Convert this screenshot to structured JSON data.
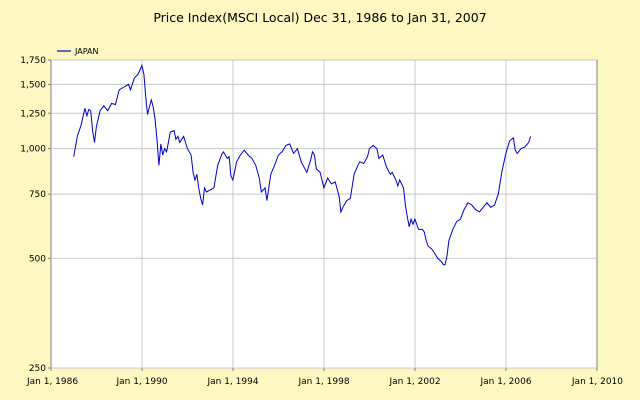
{
  "chart_data": {
    "type": "line",
    "title": "Price Index(MSCI Local) Dec 31, 1986 to Jan 31, 2007",
    "xlabel": "",
    "ylabel": "",
    "y_scale": "log",
    "xlim": [
      "1986-01-01",
      "2010-01-01"
    ],
    "ylim": [
      250,
      1750
    ],
    "grid": true,
    "legend_position": "top-left",
    "x_ticks": [
      "Jan 1, 1986",
      "Jan 1, 1990",
      "Jan 1, 1994",
      "Jan 1, 1998",
      "Jan 1, 2002",
      "Jan 1, 2006",
      "Jan 1, 2010"
    ],
    "y_ticks": [
      "250",
      "500",
      "750",
      "1,000",
      "1,250",
      "1,500",
      "1,750"
    ],
    "series": [
      {
        "name": "JAPAN",
        "color": "#0000cc",
        "points": [
          [
            "1986-12-31",
            950
          ],
          [
            "1987-02-28",
            1080
          ],
          [
            "1987-04-30",
            1160
          ],
          [
            "1987-06-30",
            1290
          ],
          [
            "1987-07-31",
            1230
          ],
          [
            "1987-08-31",
            1280
          ],
          [
            "1987-09-30",
            1270
          ],
          [
            "1987-10-31",
            1120
          ],
          [
            "1987-11-30",
            1040
          ],
          [
            "1987-12-31",
            1150
          ],
          [
            "1988-02-28",
            1270
          ],
          [
            "1988-04-30",
            1310
          ],
          [
            "1988-06-30",
            1270
          ],
          [
            "1988-08-31",
            1330
          ],
          [
            "1988-10-31",
            1320
          ],
          [
            "1988-12-31",
            1450
          ],
          [
            "1989-03-31",
            1480
          ],
          [
            "1989-05-31",
            1500
          ],
          [
            "1989-06-30",
            1450
          ],
          [
            "1989-08-31",
            1560
          ],
          [
            "1989-10-31",
            1600
          ],
          [
            "1989-12-31",
            1690
          ],
          [
            "1990-01-31",
            1600
          ],
          [
            "1990-02-28",
            1400
          ],
          [
            "1990-03-31",
            1240
          ],
          [
            "1990-04-30",
            1300
          ],
          [
            "1990-05-31",
            1360
          ],
          [
            "1990-06-30",
            1300
          ],
          [
            "1990-07-31",
            1200
          ],
          [
            "1990-08-31",
            1050
          ],
          [
            "1990-09-30",
            900
          ],
          [
            "1990-10-31",
            1030
          ],
          [
            "1990-11-30",
            960
          ],
          [
            "1990-12-31",
            1000
          ],
          [
            "1991-01-31",
            980
          ],
          [
            "1991-03-31",
            1110
          ],
          [
            "1991-05-31",
            1120
          ],
          [
            "1991-06-30",
            1060
          ],
          [
            "1991-07-31",
            1080
          ],
          [
            "1991-08-31",
            1040
          ],
          [
            "1991-10-31",
            1080
          ],
          [
            "1991-12-31",
            1000
          ],
          [
            "1992-02-28",
            960
          ],
          [
            "1992-03-31",
            860
          ],
          [
            "1992-04-30",
            820
          ],
          [
            "1992-05-31",
            850
          ],
          [
            "1992-06-30",
            780
          ],
          [
            "1992-07-31",
            730
          ],
          [
            "1992-08-31",
            700
          ],
          [
            "1992-09-30",
            780
          ],
          [
            "1992-10-31",
            760
          ],
          [
            "1992-12-31",
            770
          ],
          [
            "1993-02-28",
            780
          ],
          [
            "1993-04-30",
            900
          ],
          [
            "1993-06-30",
            960
          ],
          [
            "1993-07-31",
            980
          ],
          [
            "1993-08-31",
            960
          ],
          [
            "1993-09-30",
            940
          ],
          [
            "1993-10-31",
            950
          ],
          [
            "1993-11-30",
            840
          ],
          [
            "1993-12-31",
            820
          ],
          [
            "1994-02-28",
            920
          ],
          [
            "1994-04-30",
            960
          ],
          [
            "1994-06-30",
            990
          ],
          [
            "1994-08-31",
            960
          ],
          [
            "1994-10-31",
            940
          ],
          [
            "1994-12-31",
            900
          ],
          [
            "1995-02-28",
            830
          ],
          [
            "1995-03-31",
            760
          ],
          [
            "1995-05-31",
            780
          ],
          [
            "1995-06-30",
            720
          ],
          [
            "1995-08-31",
            850
          ],
          [
            "1995-10-31",
            900
          ],
          [
            "1995-12-31",
            960
          ],
          [
            "1996-02-28",
            980
          ],
          [
            "1996-04-30",
            1020
          ],
          [
            "1996-06-30",
            1030
          ],
          [
            "1996-08-31",
            970
          ],
          [
            "1996-10-31",
            1000
          ],
          [
            "1996-12-31",
            920
          ],
          [
            "1997-02-28",
            880
          ],
          [
            "1997-03-31",
            860
          ],
          [
            "1997-05-31",
            930
          ],
          [
            "1997-06-30",
            980
          ],
          [
            "1997-07-31",
            960
          ],
          [
            "1997-08-31",
            880
          ],
          [
            "1997-10-31",
            860
          ],
          [
            "1997-12-31",
            780
          ],
          [
            "1998-02-28",
            830
          ],
          [
            "1998-04-30",
            800
          ],
          [
            "1998-06-30",
            810
          ],
          [
            "1998-08-31",
            740
          ],
          [
            "1998-09-30",
            670
          ],
          [
            "1998-10-31",
            690
          ],
          [
            "1998-12-31",
            720
          ],
          [
            "1999-02-28",
            730
          ],
          [
            "1999-04-30",
            850
          ],
          [
            "1999-06-30",
            900
          ],
          [
            "1999-07-31",
            920
          ],
          [
            "1999-09-30",
            910
          ],
          [
            "1999-11-30",
            950
          ],
          [
            "1999-12-31",
            1000
          ],
          [
            "2000-02-28",
            1020
          ],
          [
            "2000-04-30",
            1000
          ],
          [
            "2000-05-31",
            940
          ],
          [
            "2000-07-31",
            960
          ],
          [
            "2000-09-30",
            890
          ],
          [
            "2000-11-30",
            850
          ],
          [
            "2000-12-31",
            860
          ],
          [
            "2001-02-28",
            820
          ],
          [
            "2001-03-31",
            790
          ],
          [
            "2001-04-30",
            820
          ],
          [
            "2001-06-30",
            780
          ],
          [
            "2001-07-31",
            700
          ],
          [
            "2001-08-31",
            650
          ],
          [
            "2001-09-30",
            610
          ],
          [
            "2001-10-31",
            640
          ],
          [
            "2001-11-30",
            620
          ],
          [
            "2001-12-31",
            640
          ],
          [
            "2002-02-28",
            600
          ],
          [
            "2002-04-30",
            600
          ],
          [
            "2002-05-31",
            590
          ],
          [
            "2002-06-30",
            560
          ],
          [
            "2002-07-31",
            540
          ],
          [
            "2002-09-30",
            530
          ],
          [
            "2002-10-31",
            520
          ],
          [
            "2002-12-31",
            500
          ],
          [
            "2003-02-28",
            490
          ],
          [
            "2003-03-31",
            480
          ],
          [
            "2003-04-30",
            480
          ],
          [
            "2003-05-31",
            510
          ],
          [
            "2003-06-30",
            560
          ],
          [
            "2003-08-31",
            600
          ],
          [
            "2003-10-31",
            630
          ],
          [
            "2003-12-31",
            640
          ],
          [
            "2004-02-28",
            680
          ],
          [
            "2004-04-30",
            710
          ],
          [
            "2004-06-30",
            700
          ],
          [
            "2004-08-31",
            680
          ],
          [
            "2004-10-31",
            670
          ],
          [
            "2004-12-31",
            690
          ],
          [
            "2005-02-28",
            710
          ],
          [
            "2005-04-30",
            690
          ],
          [
            "2005-06-30",
            700
          ],
          [
            "2005-08-31",
            750
          ],
          [
            "2005-09-30",
            810
          ],
          [
            "2005-10-31",
            870
          ],
          [
            "2005-12-31",
            970
          ],
          [
            "2006-02-28",
            1050
          ],
          [
            "2006-04-30",
            1070
          ],
          [
            "2006-05-31",
            990
          ],
          [
            "2006-06-30",
            970
          ],
          [
            "2006-08-31",
            1000
          ],
          [
            "2006-10-31",
            1010
          ],
          [
            "2006-12-31",
            1040
          ],
          [
            "2007-01-31",
            1080
          ]
        ]
      }
    ]
  }
}
